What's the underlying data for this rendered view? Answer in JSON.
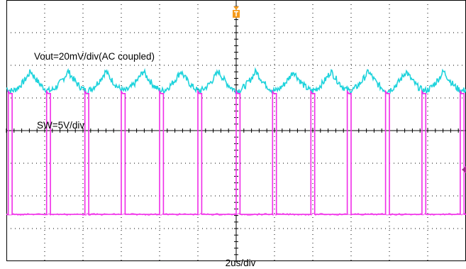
{
  "labels": {
    "ch1": "Vout=20mV/div(AC coupled)",
    "ch2": "SW=5V/div",
    "timebase": "2us/div"
  },
  "colors": {
    "vout": "#1fd3dc",
    "sw": "#f02ce8",
    "trigger": "#f59a1c",
    "marker": "#a0288c",
    "grid": "#000000"
  },
  "chart_data": {
    "type": "line",
    "grid_divisions": {
      "x": 12,
      "y": 8
    },
    "timebase": "2us/div",
    "series": [
      {
        "name": "Vout=20mV/div(AC coupled)",
        "unit": "mV",
        "period_us": 1.96,
        "ripple_peak_to_peak_mV": 12,
        "shape": "ripple"
      },
      {
        "name": "SW=5V/div",
        "unit": "V",
        "pulses": [
          {
            "start_us": -11.9,
            "end_us": -11.7
          },
          {
            "start_us": -9.9,
            "end_us": -9.7
          },
          {
            "start_us": -7.9,
            "end_us": -7.7
          },
          {
            "start_us": -6.0,
            "end_us": -5.8
          },
          {
            "start_us": -4.0,
            "end_us": -3.8
          },
          {
            "start_us": -2.0,
            "end_us": -1.8
          },
          {
            "start_us": 0.0,
            "end_us": 0.2
          },
          {
            "start_us": 1.9,
            "end_us": 2.1
          },
          {
            "start_us": 3.9,
            "end_us": 4.1
          },
          {
            "start_us": 5.8,
            "end_us": 6.0
          },
          {
            "start_us": 7.8,
            "end_us": 8.0
          },
          {
            "start_us": 9.7,
            "end_us": 9.9
          },
          {
            "start_us": 11.7,
            "end_us": 11.9
          }
        ],
        "high_V": 18.5,
        "low_V": 0
      }
    ]
  }
}
